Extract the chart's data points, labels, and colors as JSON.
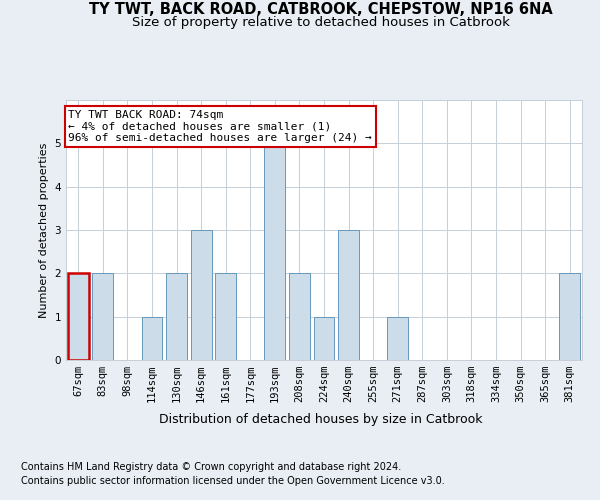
{
  "title": "TY TWT, BACK ROAD, CATBROOK, CHEPSTOW, NP16 6NA",
  "subtitle": "Size of property relative to detached houses in Catbrook",
  "xlabel": "Distribution of detached houses by size in Catbrook",
  "ylabel": "Number of detached properties",
  "categories": [
    "67sqm",
    "83sqm",
    "98sqm",
    "114sqm",
    "130sqm",
    "146sqm",
    "161sqm",
    "177sqm",
    "193sqm",
    "208sqm",
    "224sqm",
    "240sqm",
    "255sqm",
    "271sqm",
    "287sqm",
    "303sqm",
    "318sqm",
    "334sqm",
    "350sqm",
    "365sqm",
    "381sqm"
  ],
  "values": [
    2,
    2,
    0,
    1,
    2,
    3,
    2,
    0,
    5,
    2,
    1,
    3,
    0,
    1,
    0,
    0,
    0,
    0,
    0,
    0,
    2
  ],
  "bar_color": "#ccdce8",
  "bar_edge_color": "#6699bb",
  "highlight_bar_index": 0,
  "highlight_edge_color": "#cc0000",
  "annotation_text": "TY TWT BACK ROAD: 74sqm\n← 4% of detached houses are smaller (1)\n96% of semi-detached houses are larger (24) →",
  "annotation_box_color": "white",
  "annotation_box_edge_color": "#cc0000",
  "ylim": [
    0,
    6
  ],
  "yticks": [
    0,
    1,
    2,
    3,
    4,
    5,
    6
  ],
  "background_color": "#e8eef4",
  "plot_background_color": "#ffffff",
  "footer_line1": "Contains HM Land Registry data © Crown copyright and database right 2024.",
  "footer_line2": "Contains public sector information licensed under the Open Government Licence v3.0.",
  "title_fontsize": 10.5,
  "subtitle_fontsize": 9.5,
  "xlabel_fontsize": 9,
  "ylabel_fontsize": 8,
  "tick_fontsize": 7.5,
  "annotation_fontsize": 8,
  "footer_fontsize": 7
}
